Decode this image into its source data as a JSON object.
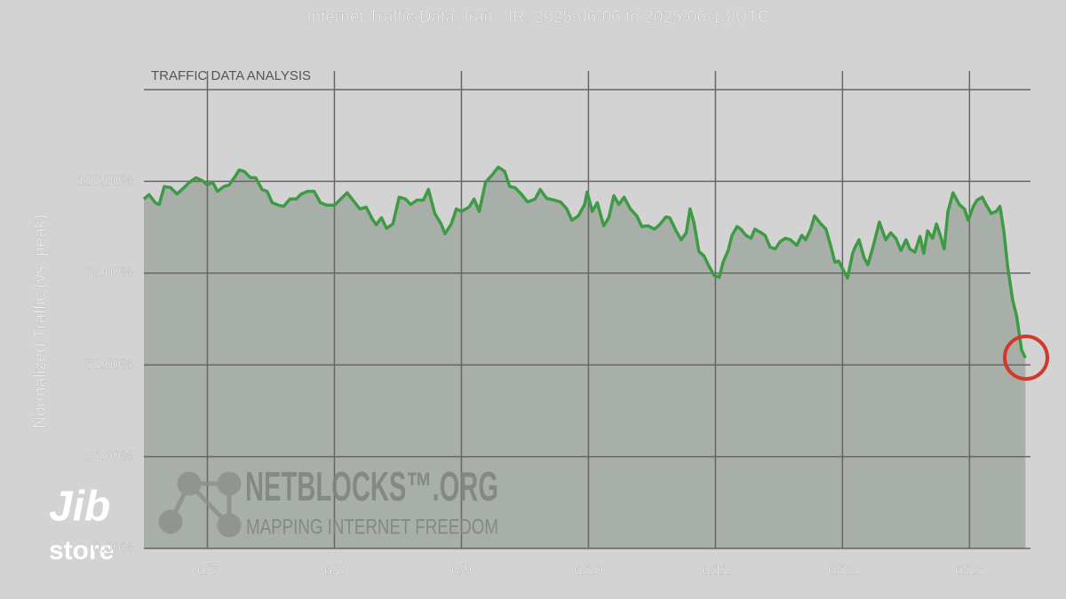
{
  "chart_data": {
    "type": "area-line",
    "title": "Internet Traffic Data, Iran - IR, 2025-06-06 to 2025-06-13 UTC",
    "panel_label": "TRAFFIC DATA ANALYSIS",
    "y_label": "Normalized Traffic (vs. peak)",
    "watermark": {
      "brand": "NETBLOCKS™.ORG",
      "tagline": "MAPPING INTERNET FREEDOM"
    },
    "logo": {
      "top": "Jib",
      "bottom": "store"
    },
    "line_color": "#3e9a44",
    "area_color": "#a8aea8",
    "grid": true,
    "xlim": [
      6.5,
      13.48
    ],
    "xticks": [
      {
        "value": 7,
        "label": "6/7"
      },
      {
        "value": 8,
        "label": "6/8"
      },
      {
        "value": 9,
        "label": "6/9"
      },
      {
        "value": 10,
        "label": "6/10"
      },
      {
        "value": 11,
        "label": "6/11"
      },
      {
        "value": 12,
        "label": "6/12"
      },
      {
        "value": 13,
        "label": "6/13"
      }
    ],
    "ylim": [
      0,
      125
    ],
    "yticks": [
      {
        "value": 0,
        "label": "0.00%"
      },
      {
        "value": 25,
        "label": "25.00%"
      },
      {
        "value": 50,
        "label": "50.00%"
      },
      {
        "value": 75,
        "label": "75.00%"
      },
      {
        "value": 100,
        "label": "100.00%"
      }
    ],
    "x": [
      6.5,
      6.54,
      6.59,
      6.62,
      6.66,
      6.71,
      6.76,
      6.8,
      6.86,
      6.91,
      6.96,
      7.0,
      7.04,
      7.08,
      7.13,
      7.17,
      7.22,
      7.25,
      7.29,
      7.34,
      7.38,
      7.43,
      7.47,
      7.51,
      7.56,
      7.6,
      7.65,
      7.7,
      7.74,
      7.79,
      7.84,
      7.89,
      7.94,
      8.0,
      8.05,
      8.1,
      8.15,
      8.2,
      8.25,
      8.3,
      8.33,
      8.37,
      8.41,
      8.46,
      8.51,
      8.56,
      8.6,
      8.65,
      8.7,
      8.74,
      8.79,
      8.84,
      8.87,
      8.92,
      8.96,
      9.0,
      9.06,
      9.1,
      9.14,
      9.19,
      9.24,
      9.29,
      9.34,
      9.38,
      9.42,
      9.47,
      9.52,
      9.58,
      9.62,
      9.67,
      9.73,
      9.78,
      9.83,
      9.87,
      9.92,
      9.97,
      9.99,
      10.03,
      10.07,
      10.12,
      10.16,
      10.2,
      10.24,
      10.28,
      10.33,
      10.38,
      10.42,
      10.47,
      10.52,
      10.56,
      10.61,
      10.64,
      10.69,
      10.73,
      10.77,
      10.8,
      10.83,
      10.87,
      10.91,
      10.95,
      10.99,
      11.03,
      11.06,
      11.1,
      11.13,
      11.17,
      11.2,
      11.24,
      11.28,
      11.31,
      11.36,
      11.39,
      11.43,
      11.47,
      11.51,
      11.55,
      11.59,
      11.64,
      11.68,
      11.71,
      11.75,
      11.78,
      11.83,
      11.87,
      11.91,
      11.94,
      11.97,
      12.01,
      12.04,
      12.08,
      12.1,
      12.13,
      12.17,
      12.2,
      12.24,
      12.29,
      12.34,
      12.38,
      12.42,
      12.46,
      12.5,
      12.53,
      12.57,
      12.61,
      12.64,
      12.67,
      12.71,
      12.74,
      12.77,
      12.8,
      12.83,
      12.87,
      12.92,
      12.96,
      12.99,
      13.03,
      13.06,
      13.1,
      13.13,
      13.17,
      13.21,
      13.24,
      13.27,
      13.3,
      13.34,
      13.37,
      13.41,
      13.44
    ],
    "values": [
      95.2,
      96.4,
      94.2,
      93.7,
      98.6,
      98.3,
      96.6,
      97.8,
      99.8,
      101.0,
      100.2,
      99.0,
      99.8,
      97.3,
      98.6,
      99.0,
      101.4,
      103.1,
      102.7,
      101.0,
      101.0,
      97.8,
      97.3,
      94.2,
      93.5,
      93.2,
      95.2,
      95.2,
      96.6,
      97.3,
      97.3,
      94.2,
      93.5,
      93.5,
      95.2,
      96.9,
      94.7,
      92.5,
      93.0,
      89.6,
      88.2,
      90.1,
      87.2,
      88.4,
      95.7,
      95.2,
      93.7,
      94.9,
      94.9,
      97.8,
      91.3,
      88.4,
      85.7,
      88.4,
      92.5,
      91.8,
      93.0,
      95.2,
      91.8,
      99.8,
      101.7,
      103.9,
      102.7,
      98.6,
      98.3,
      96.6,
      94.4,
      95.2,
      97.8,
      95.4,
      94.9,
      94.4,
      92.5,
      89.4,
      90.6,
      93.7,
      97.1,
      91.8,
      94.2,
      87.9,
      90.1,
      96.1,
      93.7,
      95.7,
      92.5,
      90.6,
      87.7,
      87.9,
      87.0,
      88.2,
      90.3,
      90.1,
      86.5,
      84.1,
      86.0,
      92.5,
      88.9,
      80.9,
      79.7,
      76.8,
      74.4,
      73.9,
      78.0,
      81.2,
      85.3,
      87.7,
      87.0,
      85.3,
      84.5,
      87.0,
      86.0,
      85.3,
      82.1,
      81.6,
      83.6,
      84.5,
      84.1,
      82.6,
      85.3,
      84.1,
      87.0,
      90.6,
      88.4,
      87.0,
      82.1,
      78.0,
      78.3,
      75.6,
      73.7,
      80.4,
      82.1,
      84.1,
      79.2,
      77.3,
      82.1,
      88.9,
      84.1,
      86.0,
      84.5,
      81.2,
      84.1,
      81.6,
      80.7,
      85.0,
      80.4,
      86.5,
      84.5,
      88.4,
      85.3,
      81.6,
      91.8,
      96.9,
      93.7,
      92.5,
      89.4,
      93.2,
      94.9,
      95.7,
      93.7,
      91.3,
      91.8,
      93.2,
      86.5,
      76.8,
      67.6,
      63.5,
      54.1,
      51.9
    ]
  }
}
